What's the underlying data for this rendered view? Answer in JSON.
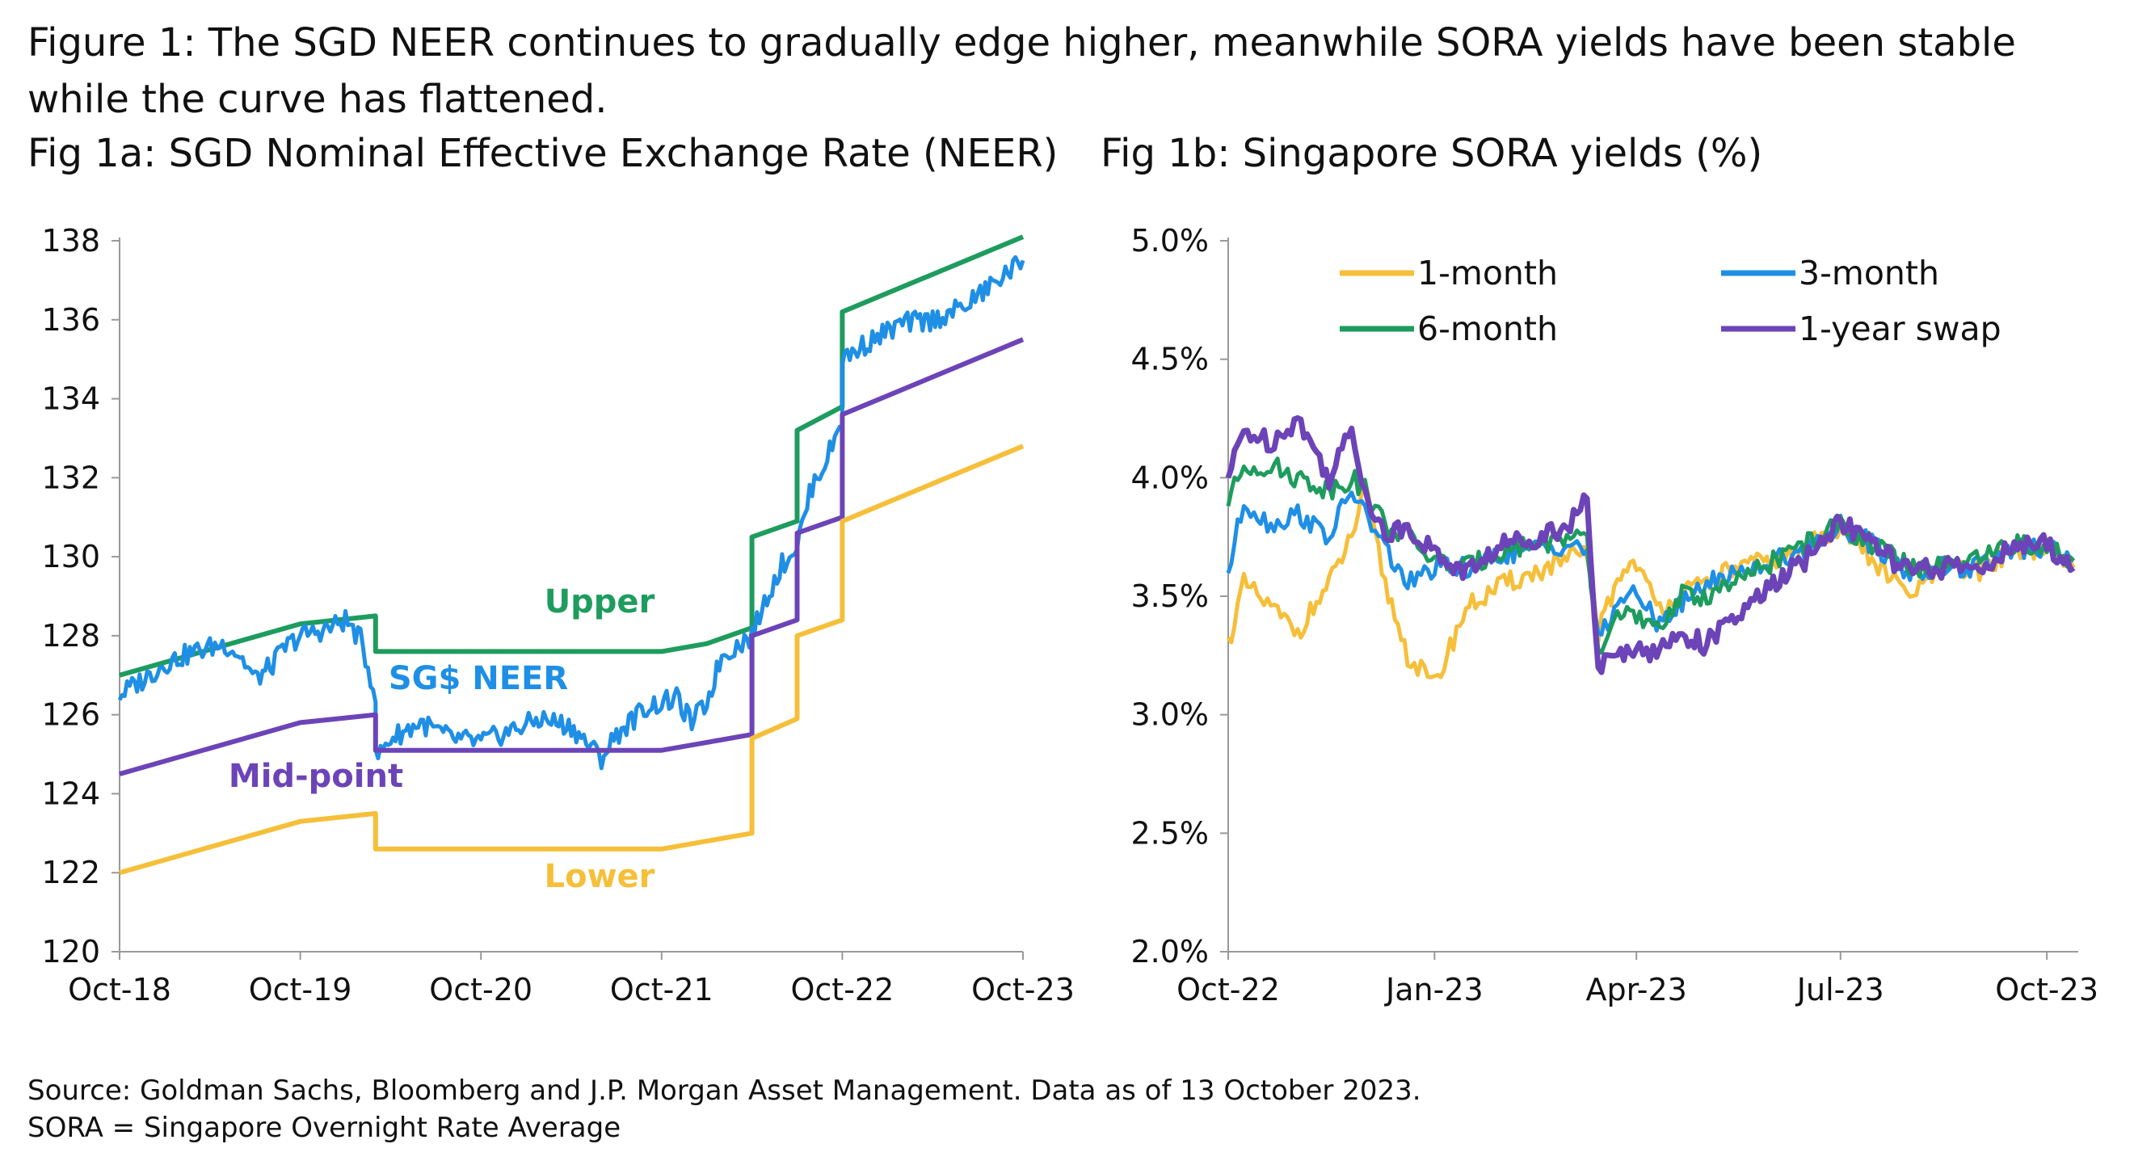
{
  "figure_title": "Figure 1: The SGD NEER continues to gradually edge higher, meanwhile SORA yields have been stable while the curve has flattened.",
  "notes": {
    "source": "Source: Goldman Sachs, Bloomberg and J.P. Morgan Asset Management. Data as of  13 October 2023.",
    "abbreviation": "SORA = Singapore Overnight Rate Average"
  },
  "colors": {
    "upper": "#1e9c5e",
    "neer": "#1f8fe5",
    "midpoint": "#6c44b8",
    "lower": "#f6bf3a",
    "axis": "#999999"
  },
  "chart_data": [
    {
      "type": "line",
      "title": "Fig 1a: SGD Nominal Effective Exchange Rate (NEER)",
      "xlabel": "",
      "ylabel": "",
      "ylim": [
        120,
        138
      ],
      "y_ticks": [
        "120",
        "122",
        "124",
        "126",
        "128",
        "130",
        "132",
        "134",
        "136",
        "138"
      ],
      "x_range": [
        "2018-10",
        "2023-10"
      ],
      "x_ticks": [
        "Oct-18",
        "Oct-19",
        "Oct-20",
        "Oct-21",
        "Oct-22",
        "Oct-23"
      ],
      "grid": false,
      "legend": "none",
      "annotations": [
        {
          "text": "Upper",
          "series": "Upper"
        },
        {
          "text": "SG$ NEER",
          "series": "SG$ NEER"
        },
        {
          "text": "Mid-point",
          "series": "Mid-point"
        },
        {
          "text": "Lower",
          "series": "Lower"
        }
      ],
      "series": [
        {
          "name": "Upper",
          "points": [
            [
              "2018-10",
              127.0
            ],
            [
              "2019-10",
              128.3
            ],
            [
              "2020-03",
              128.5
            ],
            [
              "2020-03",
              127.6
            ],
            [
              "2021-10",
              127.6
            ],
            [
              "2022-01",
              127.8
            ],
            [
              "2022-04",
              128.2
            ],
            [
              "2022-04",
              130.5
            ],
            [
              "2022-07",
              130.9
            ],
            [
              "2022-07",
              133.2
            ],
            [
              "2022-10",
              133.8
            ],
            [
              "2022-10",
              136.2
            ],
            [
              "2023-10",
              138.1
            ]
          ]
        },
        {
          "name": "SG$ NEER",
          "points": [
            [
              "2018-10",
              126.5
            ],
            [
              "2018-12",
              127.0
            ],
            [
              "2019-01",
              127.3
            ],
            [
              "2019-03",
              127.6
            ],
            [
              "2019-05",
              127.8
            ],
            [
              "2019-06",
              127.5
            ],
            [
              "2019-07",
              126.9
            ],
            [
              "2019-08",
              127.2
            ],
            [
              "2019-09",
              127.7
            ],
            [
              "2019-10",
              128.0
            ],
            [
              "2019-12",
              128.2
            ],
            [
              "2020-01",
              128.4
            ],
            [
              "2020-02",
              127.9
            ],
            [
              "2020-03",
              126.5
            ],
            [
              "2020-03",
              124.9
            ],
            [
              "2020-04",
              125.4
            ],
            [
              "2020-06",
              125.8
            ],
            [
              "2020-08",
              125.4
            ],
            [
              "2020-10",
              125.3
            ],
            [
              "2020-12",
              125.6
            ],
            [
              "2021-02",
              125.9
            ],
            [
              "2021-04",
              125.7
            ],
            [
              "2021-05",
              125.3
            ],
            [
              "2021-06",
              124.9
            ],
            [
              "2021-07",
              125.5
            ],
            [
              "2021-09",
              126.2
            ],
            [
              "2021-11",
              126.4
            ],
            [
              "2021-12",
              125.8
            ],
            [
              "2022-01",
              126.3
            ],
            [
              "2022-02",
              127.5
            ],
            [
              "2022-04",
              128.0
            ],
            [
              "2022-05",
              129.0
            ],
            [
              "2022-06",
              129.8
            ],
            [
              "2022-07",
              130.3
            ],
            [
              "2022-08",
              131.8
            ],
            [
              "2022-09",
              132.5
            ],
            [
              "2022-10",
              133.5
            ],
            [
              "2022-10",
              135.0
            ],
            [
              "2022-12",
              135.5
            ],
            [
              "2023-02",
              135.9
            ],
            [
              "2023-04",
              136.0
            ],
            [
              "2023-06",
              136.3
            ],
            [
              "2023-08",
              136.9
            ],
            [
              "2023-10",
              137.5
            ]
          ]
        },
        {
          "name": "Mid-point",
          "points": [
            [
              "2018-10",
              124.5
            ],
            [
              "2019-10",
              125.8
            ],
            [
              "2020-03",
              126.0
            ],
            [
              "2020-03",
              125.1
            ],
            [
              "2021-10",
              125.1
            ],
            [
              "2022-01",
              125.3
            ],
            [
              "2022-04",
              125.5
            ],
            [
              "2022-04",
              128.0
            ],
            [
              "2022-07",
              128.4
            ],
            [
              "2022-07",
              130.6
            ],
            [
              "2022-10",
              131.0
            ],
            [
              "2022-10",
              133.6
            ],
            [
              "2023-10",
              135.5
            ]
          ]
        },
        {
          "name": "Lower",
          "points": [
            [
              "2018-10",
              122.0
            ],
            [
              "2019-10",
              123.3
            ],
            [
              "2020-03",
              123.5
            ],
            [
              "2020-03",
              122.6
            ],
            [
              "2021-10",
              122.6
            ],
            [
              "2022-01",
              122.8
            ],
            [
              "2022-04",
              123.0
            ],
            [
              "2022-04",
              125.4
            ],
            [
              "2022-07",
              125.9
            ],
            [
              "2022-07",
              128.0
            ],
            [
              "2022-10",
              128.4
            ],
            [
              "2022-10",
              130.9
            ],
            [
              "2023-10",
              132.8
            ]
          ]
        }
      ]
    },
    {
      "type": "line",
      "title": "Fig 1b: Singapore SORA yields (%)",
      "xlabel": "",
      "ylabel": "",
      "ylim": [
        2.0,
        5.0
      ],
      "y_ticks": [
        "2.0%",
        "2.5%",
        "3.0%",
        "3.5%",
        "4.0%",
        "4.5%",
        "5.0%"
      ],
      "x_range": [
        "2022-10-01",
        "2023-10-15"
      ],
      "x_ticks": [
        "Oct-22",
        "Jan-23",
        "Apr-23",
        "Jul-23",
        "Oct-23"
      ],
      "grid": false,
      "legend": "top",
      "series": [
        {
          "name": "1-month",
          "points": [
            [
              "2022-10-01",
              3.3
            ],
            [
              "2022-10-08",
              3.55
            ],
            [
              "2022-10-20",
              3.45
            ],
            [
              "2022-11-01",
              3.35
            ],
            [
              "2022-11-15",
              3.55
            ],
            [
              "2022-11-25",
              3.75
            ],
            [
              "2022-12-01",
              3.95
            ],
            [
              "2022-12-10",
              3.55
            ],
            [
              "2022-12-20",
              3.25
            ],
            [
              "2023-01-01",
              3.12
            ],
            [
              "2023-01-15",
              3.45
            ],
            [
              "2023-02-01",
              3.55
            ],
            [
              "2023-02-15",
              3.6
            ],
            [
              "2023-03-01",
              3.65
            ],
            [
              "2023-03-10",
              3.68
            ],
            [
              "2023-03-15",
              3.35
            ],
            [
              "2023-03-25",
              3.6
            ],
            [
              "2023-04-01",
              3.65
            ],
            [
              "2023-04-10",
              3.45
            ],
            [
              "2023-04-20",
              3.5
            ],
            [
              "2023-05-01",
              3.55
            ],
            [
              "2023-05-15",
              3.62
            ],
            [
              "2023-06-01",
              3.65
            ],
            [
              "2023-06-15",
              3.7
            ],
            [
              "2023-07-01",
              3.8
            ],
            [
              "2023-07-15",
              3.65
            ],
            [
              "2023-08-01",
              3.5
            ],
            [
              "2023-08-15",
              3.62
            ],
            [
              "2023-09-01",
              3.6
            ],
            [
              "2023-09-15",
              3.7
            ],
            [
              "2023-10-01",
              3.7
            ],
            [
              "2023-10-13",
              3.62
            ]
          ]
        },
        {
          "name": "3-month",
          "points": [
            [
              "2022-10-01",
              3.6
            ],
            [
              "2022-10-08",
              3.9
            ],
            [
              "2022-10-20",
              3.8
            ],
            [
              "2022-11-01",
              3.85
            ],
            [
              "2022-11-15",
              3.75
            ],
            [
              "2022-11-25",
              3.95
            ],
            [
              "2022-12-01",
              3.85
            ],
            [
              "2022-12-10",
              3.7
            ],
            [
              "2022-12-20",
              3.55
            ],
            [
              "2023-01-01",
              3.62
            ],
            [
              "2023-01-15",
              3.62
            ],
            [
              "2023-02-01",
              3.68
            ],
            [
              "2023-02-15",
              3.7
            ],
            [
              "2023-03-01",
              3.72
            ],
            [
              "2023-03-10",
              3.7
            ],
            [
              "2023-03-15",
              3.3
            ],
            [
              "2023-03-25",
              3.5
            ],
            [
              "2023-04-01",
              3.5
            ],
            [
              "2023-04-10",
              3.4
            ],
            [
              "2023-04-20",
              3.45
            ],
            [
              "2023-05-01",
              3.55
            ],
            [
              "2023-05-15",
              3.6
            ],
            [
              "2023-06-01",
              3.65
            ],
            [
              "2023-06-15",
              3.7
            ],
            [
              "2023-07-01",
              3.8
            ],
            [
              "2023-07-15",
              3.72
            ],
            [
              "2023-08-01",
              3.6
            ],
            [
              "2023-08-15",
              3.62
            ],
            [
              "2023-09-01",
              3.62
            ],
            [
              "2023-09-15",
              3.7
            ],
            [
              "2023-10-01",
              3.7
            ],
            [
              "2023-10-13",
              3.65
            ]
          ]
        },
        {
          "name": "6-month",
          "points": [
            [
              "2022-10-01",
              3.9
            ],
            [
              "2022-10-08",
              4.05
            ],
            [
              "2022-10-20",
              4.05
            ],
            [
              "2022-11-01",
              4.0
            ],
            [
              "2022-11-15",
              3.95
            ],
            [
              "2022-11-25",
              4.0
            ],
            [
              "2022-12-01",
              3.95
            ],
            [
              "2022-12-10",
              3.8
            ],
            [
              "2022-12-20",
              3.75
            ],
            [
              "2023-01-01",
              3.65
            ],
            [
              "2023-01-15",
              3.62
            ],
            [
              "2023-02-01",
              3.7
            ],
            [
              "2023-02-15",
              3.72
            ],
            [
              "2023-03-01",
              3.75
            ],
            [
              "2023-03-10",
              3.72
            ],
            [
              "2023-03-15",
              3.25
            ],
            [
              "2023-03-25",
              3.45
            ],
            [
              "2023-04-01",
              3.4
            ],
            [
              "2023-04-10",
              3.35
            ],
            [
              "2023-04-20",
              3.5
            ],
            [
              "2023-05-01",
              3.5
            ],
            [
              "2023-05-15",
              3.55
            ],
            [
              "2023-06-01",
              3.65
            ],
            [
              "2023-06-15",
              3.72
            ],
            [
              "2023-07-01",
              3.8
            ],
            [
              "2023-07-15",
              3.72
            ],
            [
              "2023-08-01",
              3.62
            ],
            [
              "2023-08-15",
              3.62
            ],
            [
              "2023-09-01",
              3.65
            ],
            [
              "2023-09-15",
              3.72
            ],
            [
              "2023-10-01",
              3.7
            ],
            [
              "2023-10-13",
              3.65
            ]
          ]
        },
        {
          "name": "1-year swap",
          "points": [
            [
              "2022-10-01",
              4.0
            ],
            [
              "2022-10-08",
              4.2
            ],
            [
              "2022-10-20",
              4.15
            ],
            [
              "2022-11-01",
              4.25
            ],
            [
              "2022-11-15",
              4.0
            ],
            [
              "2022-11-25",
              4.2
            ],
            [
              "2022-12-01",
              3.95
            ],
            [
              "2022-12-10",
              3.75
            ],
            [
              "2022-12-20",
              3.8
            ],
            [
              "2023-01-01",
              3.68
            ],
            [
              "2023-01-15",
              3.6
            ],
            [
              "2023-02-01",
              3.72
            ],
            [
              "2023-02-15",
              3.75
            ],
            [
              "2023-03-01",
              3.8
            ],
            [
              "2023-03-10",
              3.9
            ],
            [
              "2023-03-15",
              3.2
            ],
            [
              "2023-03-25",
              3.25
            ],
            [
              "2023-04-01",
              3.3
            ],
            [
              "2023-04-10",
              3.25
            ],
            [
              "2023-04-20",
              3.35
            ],
            [
              "2023-05-01",
              3.3
            ],
            [
              "2023-05-15",
              3.4
            ],
            [
              "2023-06-01",
              3.55
            ],
            [
              "2023-06-15",
              3.65
            ],
            [
              "2023-07-01",
              3.82
            ],
            [
              "2023-07-15",
              3.72
            ],
            [
              "2023-08-01",
              3.6
            ],
            [
              "2023-08-15",
              3.62
            ],
            [
              "2023-09-01",
              3.62
            ],
            [
              "2023-09-15",
              3.7
            ],
            [
              "2023-10-01",
              3.72
            ],
            [
              "2023-10-13",
              3.62
            ]
          ]
        }
      ]
    }
  ]
}
